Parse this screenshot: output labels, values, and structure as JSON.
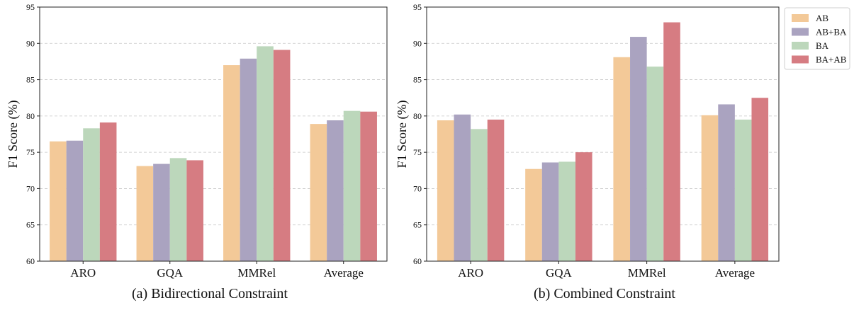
{
  "figure": {
    "colors": {
      "AB": "#f3c998",
      "AB+BA": "#aaa3c0",
      "BA": "#bcd7bb",
      "BA+AB": "#d67c82"
    },
    "legend": {
      "placement": "right-outside-top",
      "entries": [
        "AB",
        "AB+BA",
        "BA",
        "BA+AB"
      ]
    }
  },
  "chart_data": [
    {
      "type": "bar",
      "caption": "(a) Bidirectional Constraint",
      "ylabel": "F1 Score (%)",
      "xlabel": "",
      "ylim": [
        60,
        95
      ],
      "yticks": [
        "60",
        "65",
        "70",
        "75",
        "80",
        "85",
        "90",
        "95"
      ],
      "grid": "y-dashed",
      "categories": [
        "ARO",
        "GQA",
        "MMRel",
        "Average"
      ],
      "series": [
        {
          "name": "AB",
          "values": [
            76.5,
            73.1,
            87.0,
            78.9
          ]
        },
        {
          "name": "AB+BA",
          "values": [
            76.6,
            73.4,
            87.9,
            79.4
          ]
        },
        {
          "name": "BA",
          "values": [
            78.3,
            74.2,
            89.6,
            80.7
          ]
        },
        {
          "name": "BA+AB",
          "values": [
            79.1,
            73.9,
            89.1,
            80.6
          ]
        }
      ]
    },
    {
      "type": "bar",
      "caption": "(b) Combined Constraint",
      "ylabel": "F1 Score (%)",
      "xlabel": "",
      "ylim": [
        60,
        95
      ],
      "yticks": [
        "60",
        "65",
        "70",
        "75",
        "80",
        "85",
        "90",
        "95"
      ],
      "grid": "y-dashed",
      "categories": [
        "ARO",
        "GQA",
        "MMRel",
        "Average"
      ],
      "series": [
        {
          "name": "AB",
          "values": [
            79.4,
            72.7,
            88.1,
            80.1
          ]
        },
        {
          "name": "AB+BA",
          "values": [
            80.2,
            73.6,
            90.9,
            81.6
          ]
        },
        {
          "name": "BA",
          "values": [
            78.2,
            73.7,
            86.8,
            79.5
          ]
        },
        {
          "name": "BA+AB",
          "values": [
            79.5,
            75.0,
            92.9,
            82.5
          ]
        }
      ]
    }
  ]
}
